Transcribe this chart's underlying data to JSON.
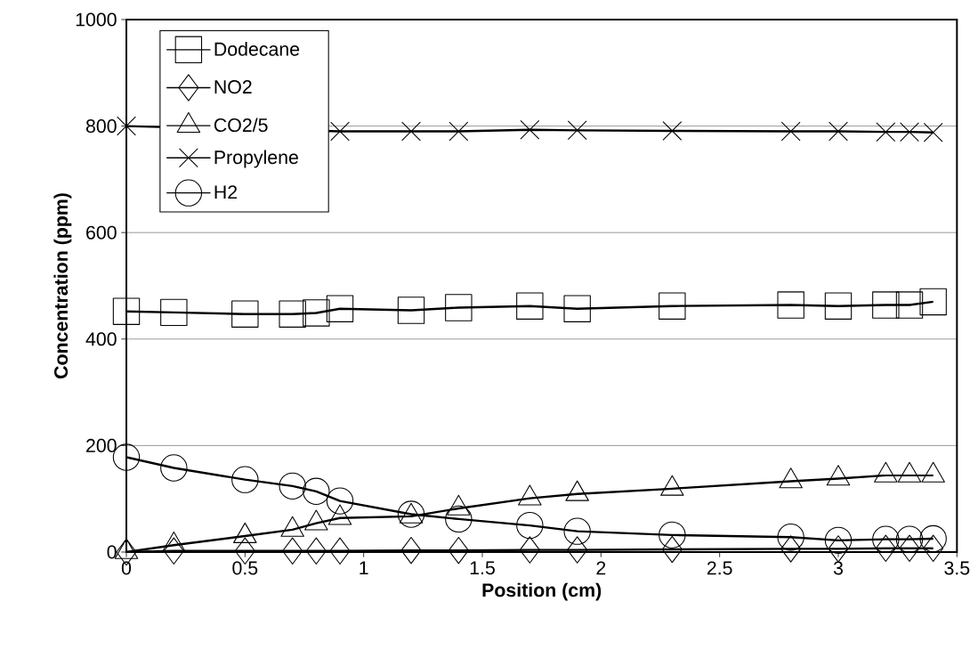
{
  "chart_data": {
    "type": "line",
    "xlabel": "Position (cm)",
    "ylabel": "Concentration (ppm)",
    "x": [
      0,
      0.2,
      0.5,
      0.7,
      0.8,
      0.9,
      1.2,
      1.4,
      1.7,
      1.9,
      2.3,
      2.8,
      3.0,
      3.2,
      3.3,
      3.4
    ],
    "series": [
      {
        "name": "Dodecane",
        "color": "#000000",
        "marker": "square",
        "values": [
          452,
          450,
          447,
          447,
          449,
          457,
          454,
          459,
          462,
          457,
          462,
          464,
          462,
          464,
          464,
          470
        ]
      },
      {
        "name": "NO2",
        "color": "#000000",
        "marker": "diamond",
        "values": [
          0,
          2,
          2,
          2,
          2,
          2,
          3,
          3,
          4,
          4,
          5,
          6,
          6,
          7,
          7,
          7
        ]
      },
      {
        "name": "CO2/5",
        "color": "#000000",
        "marker": "triangle",
        "values": [
          0,
          13,
          30,
          42,
          54,
          64,
          67,
          82,
          101,
          109,
          119,
          133,
          138,
          144,
          144,
          144
        ]
      },
      {
        "name": "Propylene",
        "color": "#000000",
        "marker": "cross",
        "values": [
          800,
          null,
          null,
          null,
          null,
          790,
          790,
          790,
          793,
          792,
          791,
          790,
          790,
          789,
          789,
          788
        ]
      },
      {
        "name": "H2",
        "color": "#000000",
        "marker": "circle",
        "values": [
          178,
          158,
          136,
          124,
          114,
          96,
          71,
          62,
          50,
          39,
          32,
          28,
          22,
          24,
          24,
          25
        ]
      }
    ],
    "xlim": [
      0,
      3.5
    ],
    "ylim": [
      0,
      1000
    ],
    "xticks": [
      0,
      0.5,
      1,
      1.5,
      2,
      2.5,
      3,
      3.5
    ],
    "yticks": [
      0,
      200,
      400,
      600,
      800,
      1000
    ],
    "grid": "y",
    "legend": "top left",
    "line_style": "solid"
  }
}
